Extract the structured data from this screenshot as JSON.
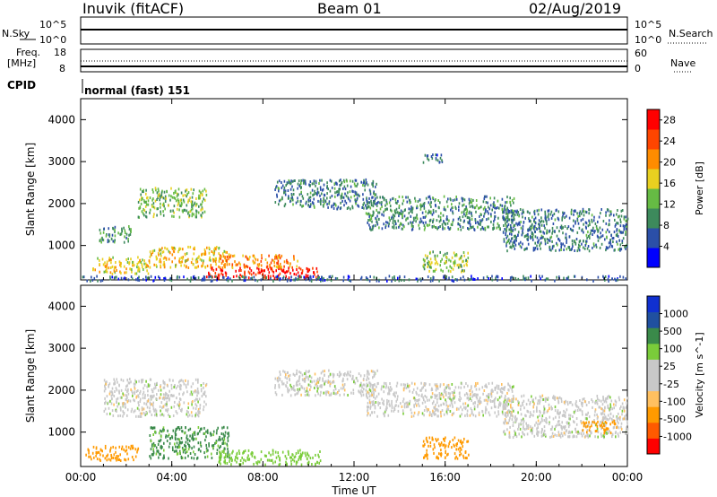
{
  "header": {
    "station": "Inuvik (fitACF)",
    "beam": "Beam 01",
    "date": "02/Aug/2019"
  },
  "strips": {
    "nsky_label": "N.Sky",
    "nsky_ticks": [
      "10^5",
      "10^0"
    ],
    "nsearch_label": "N.Search",
    "nsearch_ticks": [
      "10^5",
      "10^0"
    ],
    "freq_label_1": "Freq.",
    "freq_label_2": "[MHz]",
    "freq_ticks": [
      "18",
      "8"
    ],
    "nave_label": "Nave",
    "nave_ticks": [
      "60",
      "0"
    ],
    "cpid_label": "CPID",
    "cpid_value": "normal (fast) 151"
  },
  "colors": {
    "power_scale": [
      "#0000ff",
      "#2b4fa8",
      "#3d8a5c",
      "#66bb44",
      "#e8d020",
      "#ff8c00",
      "#ff4500",
      "#ff0000"
    ],
    "velocity_scale": [
      "#ff0000",
      "#ff5a00",
      "#ff9a00",
      "#ffc060",
      "#c8c8c8",
      "#c8c8c8",
      "#7acc3a",
      "#3a8a4a",
      "#2050a0",
      "#1030d0"
    ],
    "ground_scatter": "#9c9c9c"
  },
  "chart_data": [
    {
      "type": "heatmap",
      "title": "",
      "xlabel": "",
      "ylabel": "Slant Range [km]",
      "xticks": [
        "00:00",
        "04:00",
        "08:00",
        "12:00",
        "16:00",
        "20:00",
        "00:00"
      ],
      "yticks": [
        "1000",
        "2000",
        "3000",
        "4000"
      ],
      "xlim_hours": [
        0,
        24
      ],
      "ylim_km": [
        180,
        4500
      ],
      "colorbar": {
        "label": "Power [dB]",
        "ticks": [
          "4",
          "8",
          "12",
          "16",
          "20",
          "24",
          "28"
        ],
        "range": [
          0,
          30
        ]
      },
      "regions": [
        {
          "t0": 0.5,
          "t1": 3.0,
          "r0": 350,
          "r1": 750,
          "value": 17
        },
        {
          "t0": 0.8,
          "t1": 2.2,
          "r0": 1100,
          "r1": 1500,
          "value": 10
        },
        {
          "t0": 2.5,
          "t1": 5.5,
          "r0": 1700,
          "r1": 2400,
          "value": 13
        },
        {
          "t0": 3.0,
          "t1": 6.5,
          "r0": 500,
          "r1": 1000,
          "value": 18
        },
        {
          "t0": 5.5,
          "t1": 10.5,
          "r0": 250,
          "r1": 500,
          "value": 28
        },
        {
          "t0": 6.0,
          "t1": 9.5,
          "r0": 500,
          "r1": 800,
          "value": 21
        },
        {
          "t0": 8.5,
          "t1": 13.0,
          "r0": 1900,
          "r1": 2600,
          "value": 8
        },
        {
          "t0": 12.5,
          "t1": 19.0,
          "r0": 1400,
          "r1": 2200,
          "value": 9
        },
        {
          "t0": 15.0,
          "t1": 16.0,
          "r0": 3000,
          "r1": 3200,
          "value": 7
        },
        {
          "t0": 15.0,
          "t1": 17.0,
          "r0": 400,
          "r1": 900,
          "value": 14
        },
        {
          "t0": 18.5,
          "t1": 24.0,
          "r0": 900,
          "r1": 1900,
          "value": 8
        },
        {
          "t0": 0.0,
          "t1": 24.0,
          "r0": 180,
          "r1": 300,
          "value": 6
        }
      ]
    },
    {
      "type": "heatmap",
      "title": "",
      "xlabel": "Time UT",
      "ylabel": "Slant Range [km]",
      "xticks": [
        "00:00",
        "04:00",
        "08:00",
        "12:00",
        "16:00",
        "20:00",
        "00:00"
      ],
      "yticks": [
        "1000",
        "2000",
        "3000",
        "4000"
      ],
      "xlim_hours": [
        0,
        24
      ],
      "ylim_km": [
        180,
        4500
      ],
      "colorbar": {
        "label": "Velocity [m s^-1]",
        "ticks": [
          "1000",
          "500",
          "100",
          "25",
          "-25",
          "-100",
          "-500",
          "-1000"
        ]
      },
      "regions": [
        {
          "t0": 0.2,
          "t1": 2.5,
          "r0": 350,
          "r1": 700,
          "value": -200
        },
        {
          "t0": 3.0,
          "t1": 6.5,
          "r0": 400,
          "r1": 1150,
          "value": 150
        },
        {
          "t0": 6.0,
          "t1": 10.5,
          "r0": 250,
          "r1": 600,
          "value": 60
        },
        {
          "t0": 1.0,
          "t1": 5.5,
          "r0": 1400,
          "r1": 2300,
          "value": 0
        },
        {
          "t0": 8.5,
          "t1": 13.0,
          "r0": 1900,
          "r1": 2500,
          "value": 0
        },
        {
          "t0": 12.5,
          "t1": 19.0,
          "r0": 1400,
          "r1": 2200,
          "value": 0
        },
        {
          "t0": 15.0,
          "t1": 17.0,
          "r0": 400,
          "r1": 900,
          "value": -250
        },
        {
          "t0": 18.5,
          "t1": 24.0,
          "r0": 900,
          "r1": 1900,
          "value": 0
        },
        {
          "t0": 22.0,
          "t1": 23.5,
          "r0": 1000,
          "r1": 1300,
          "value": -300
        }
      ]
    }
  ]
}
